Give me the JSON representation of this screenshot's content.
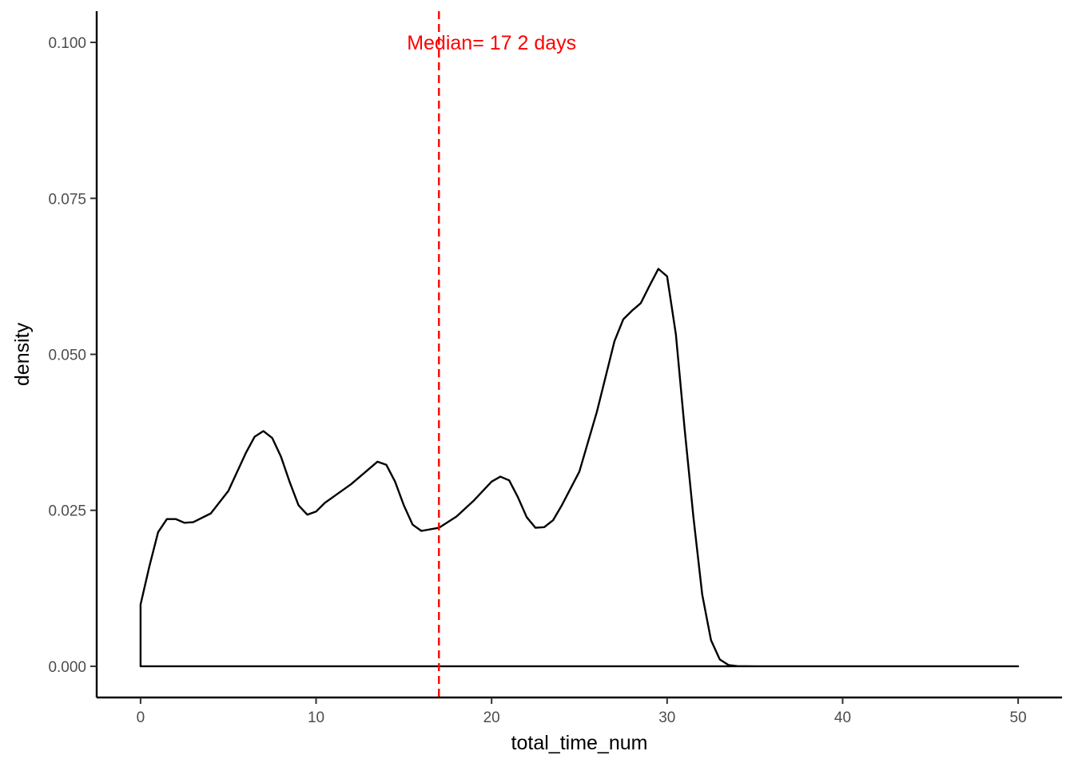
{
  "chart_data": {
    "type": "area",
    "title": "",
    "xlabel": "total_time_num",
    "ylabel": "density",
    "xlim": [
      -2.5,
      52.5
    ],
    "ylim": [
      -0.005,
      0.105
    ],
    "x_ticks": [
      0,
      10,
      20,
      30,
      40,
      50
    ],
    "x_tick_labels": [
      "0",
      "10",
      "20",
      "30",
      "40",
      "50"
    ],
    "y_ticks": [
      0,
      0.025,
      0.05,
      0.075,
      0.1
    ],
    "y_tick_labels": [
      "0.000",
      "0.025",
      "0.050",
      "0.075",
      "0.100"
    ],
    "grid": false,
    "series": [
      {
        "line_color": "#000000",
        "x": [
          0,
          0.5,
          1.0,
          1.5,
          2.0,
          2.5,
          3.0,
          4.0,
          5.0,
          6.0,
          6.5,
          7.0,
          7.5,
          8.0,
          8.5,
          9.0,
          9.5,
          10.0,
          10.5,
          11.0,
          12.0,
          13.0,
          13.5,
          14.0,
          14.5,
          15.0,
          15.5,
          16.0,
          17.0,
          18.0,
          19.0,
          20.0,
          20.5,
          21.0,
          21.5,
          22.0,
          22.5,
          23.0,
          23.5,
          24.0,
          25.0,
          26.0,
          27.0,
          27.5,
          28.0,
          28.5,
          29.0,
          29.5,
          30.0,
          30.5,
          31.0,
          31.5,
          32.0,
          32.5,
          33.0,
          33.5,
          34.0,
          35.0,
          40.0,
          45.0,
          50.0
        ],
        "y": [
          0.0099,
          0.016,
          0.0215,
          0.0236,
          0.0236,
          0.023,
          0.0231,
          0.0245,
          0.0281,
          0.0342,
          0.0368,
          0.0377,
          0.0366,
          0.0336,
          0.0295,
          0.0258,
          0.0243,
          0.0248,
          0.0262,
          0.0272,
          0.0292,
          0.0316,
          0.0328,
          0.0323,
          0.0296,
          0.0258,
          0.0227,
          0.0217,
          0.0222,
          0.024,
          0.0266,
          0.0296,
          0.0304,
          0.0298,
          0.0271,
          0.0239,
          0.0222,
          0.0223,
          0.0234,
          0.0258,
          0.0312,
          0.0408,
          0.0521,
          0.0556,
          0.057,
          0.0582,
          0.061,
          0.0637,
          0.0625,
          0.0532,
          0.038,
          0.0239,
          0.0115,
          0.0042,
          0.0011,
          0.0002,
          3e-05,
          0.0,
          0.0,
          0.0,
          0.0
        ]
      }
    ],
    "reference_line": {
      "x": 17,
      "color": "#ff0000",
      "style": "dashed"
    },
    "annotations": [
      {
        "text": "Median= 17 2 days",
        "x": 20,
        "y": 0.1,
        "color": "#ff0000"
      }
    ]
  }
}
